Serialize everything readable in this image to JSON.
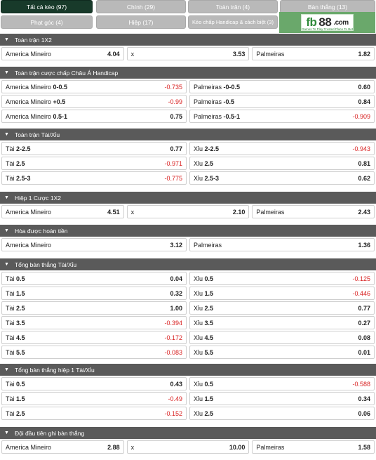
{
  "tabs": [
    {
      "label": "Tất cả kèo (97)",
      "active": true
    },
    {
      "label": "Chính (29)",
      "active": false
    },
    {
      "label": "Toàn trận (4)",
      "active": false
    },
    {
      "label": "Bàn thắng (13)",
      "active": false
    },
    {
      "label": "Phạt góc (4)",
      "active": false
    },
    {
      "label": "Hiệp (17)",
      "active": false
    },
    {
      "label": "Kèo chấp Handicap & cách biệt (3)",
      "active": false
    }
  ],
  "logo": {
    "fb": "fb",
    "n88": "88",
    "com": ".com",
    "tagline": "Games To Play Trusted Place To Bet"
  },
  "sections": [
    {
      "title": "Toàn trận 1X2",
      "rows": [
        [
          {
            "name": "America Mineiro",
            "line": "",
            "odd": "4.04"
          },
          {
            "name": "x",
            "line": "",
            "odd": "3.53"
          },
          {
            "name": "Palmeiras",
            "line": "",
            "odd": "1.82"
          }
        ]
      ]
    },
    {
      "title": "Toàn trận cược chấp Châu Á Handicap",
      "rows": [
        [
          {
            "name": "America Mineiro",
            "line": "0-0.5",
            "odd": "-0.735"
          },
          {
            "name": "Palmeiras",
            "line": "-0-0.5",
            "odd": "0.60"
          }
        ],
        [
          {
            "name": "America Mineiro",
            "line": "+0.5",
            "odd": "-0.99"
          },
          {
            "name": "Palmeiras",
            "line": "-0.5",
            "odd": "0.84"
          }
        ],
        [
          {
            "name": "America Mineiro",
            "line": "0.5-1",
            "odd": "0.75"
          },
          {
            "name": "Palmeiras",
            "line": "-0.5-1",
            "odd": "-0.909"
          }
        ]
      ]
    },
    {
      "title": "Toàn trận Tài/Xỉu",
      "rows": [
        [
          {
            "name": "Tài",
            "line": "2-2.5",
            "odd": "0.77"
          },
          {
            "name": "Xỉu",
            "line": "2-2.5",
            "odd": "-0.943"
          }
        ],
        [
          {
            "name": "Tài",
            "line": "2.5",
            "odd": "-0.971"
          },
          {
            "name": "Xỉu",
            "line": "2.5",
            "odd": "0.81"
          }
        ],
        [
          {
            "name": "Tài",
            "line": "2.5-3",
            "odd": "-0.775"
          },
          {
            "name": "Xỉu",
            "line": "2.5-3",
            "odd": "0.62"
          }
        ]
      ]
    },
    {
      "title": "Hiệp 1 Cược 1X2",
      "rows": [
        [
          {
            "name": "America Mineiro",
            "line": "",
            "odd": "4.51"
          },
          {
            "name": "x",
            "line": "",
            "odd": "2.10"
          },
          {
            "name": "Palmeiras",
            "line": "",
            "odd": "2.43"
          }
        ]
      ]
    },
    {
      "title": "Hòa được hoàn tiền",
      "rows": [
        [
          {
            "name": "America Mineiro",
            "line": "",
            "odd": "3.12"
          },
          {
            "name": "Palmeiras",
            "line": "",
            "odd": "1.36"
          }
        ]
      ]
    },
    {
      "title": "Tổng bàn thắng Tài/Xỉu",
      "rows": [
        [
          {
            "name": "Tài",
            "line": "0.5",
            "odd": "0.04"
          },
          {
            "name": "Xỉu",
            "line": "0.5",
            "odd": "-0.125"
          }
        ],
        [
          {
            "name": "Tài",
            "line": "1.5",
            "odd": "0.32"
          },
          {
            "name": "Xỉu",
            "line": "1.5",
            "odd": "-0.446"
          }
        ],
        [
          {
            "name": "Tài",
            "line": "2.5",
            "odd": "1.00"
          },
          {
            "name": "Xỉu",
            "line": "2.5",
            "odd": "0.77"
          }
        ],
        [
          {
            "name": "Tài",
            "line": "3.5",
            "odd": "-0.394"
          },
          {
            "name": "Xỉu",
            "line": "3.5",
            "odd": "0.27"
          }
        ],
        [
          {
            "name": "Tài",
            "line": "4.5",
            "odd": "-0.172"
          },
          {
            "name": "Xỉu",
            "line": "4.5",
            "odd": "0.08"
          }
        ],
        [
          {
            "name": "Tài",
            "line": "5.5",
            "odd": "-0.083"
          },
          {
            "name": "Xỉu",
            "line": "5.5",
            "odd": "0.01"
          }
        ]
      ]
    },
    {
      "title": "Tổng bàn thắng hiệp 1 Tài/Xỉu",
      "rows": [
        [
          {
            "name": "Tài",
            "line": "0.5",
            "odd": "0.43"
          },
          {
            "name": "Xỉu",
            "line": "0.5",
            "odd": "-0.588"
          }
        ],
        [
          {
            "name": "Tài",
            "line": "1.5",
            "odd": "-0.49"
          },
          {
            "name": "Xỉu",
            "line": "1.5",
            "odd": "0.34"
          }
        ],
        [
          {
            "name": "Tài",
            "line": "2.5",
            "odd": "-0.152"
          },
          {
            "name": "Xỉu",
            "line": "2.5",
            "odd": "0.06"
          }
        ]
      ]
    },
    {
      "title": "Đội đầu tiên ghi bàn thắng",
      "rows": [
        [
          {
            "name": "America Mineiro",
            "line": "",
            "odd": "2.88"
          },
          {
            "name": "x",
            "line": "",
            "odd": "10.00"
          },
          {
            "name": "Palmeiras",
            "line": "",
            "odd": "1.58"
          }
        ]
      ]
    }
  ],
  "colors": {
    "header_bg": "#5a5a5a",
    "tab_active": "#183a2a",
    "tab_inactive": "#b9b9b9",
    "negative_odd": "#d81f1f",
    "logo_bg": "#6aa86b"
  }
}
